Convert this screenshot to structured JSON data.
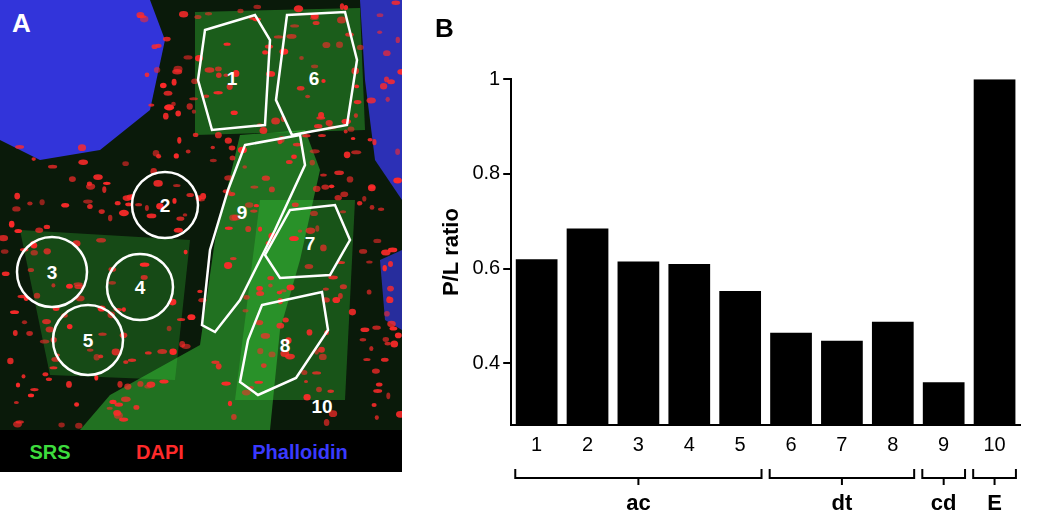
{
  "image_panel": {
    "label": "A",
    "regions": [
      "1",
      "2",
      "3",
      "4",
      "5",
      "6",
      "7",
      "8",
      "9",
      "10"
    ],
    "legend": [
      {
        "text": "SRS",
        "color": "#3ddc3d"
      },
      {
        "text": "DAPI",
        "color": "#ff2a2a"
      },
      {
        "text": "Phalloidin",
        "color": "#3a3aff"
      }
    ]
  },
  "chart_data": {
    "type": "bar",
    "title": "B",
    "y_label": "P/L ratio",
    "categories": [
      "1",
      "2",
      "3",
      "4",
      "5",
      "6",
      "7",
      "8",
      "9",
      "10"
    ],
    "values": [
      0.62,
      0.685,
      0.615,
      0.61,
      0.553,
      0.465,
      0.448,
      0.488,
      0.36,
      1.0
    ],
    "color": "#000000",
    "ylim": [
      0.27,
      1
    ],
    "yticks": [
      0.4,
      0.6,
      0.8,
      1
    ],
    "grid": false,
    "groups": [
      {
        "label": "ac",
        "categories": [
          "1",
          "2",
          "3",
          "4",
          "5"
        ]
      },
      {
        "label": "dt",
        "categories": [
          "6",
          "7",
          "8"
        ]
      },
      {
        "label": "cd",
        "categories": [
          "9"
        ]
      },
      {
        "label": "E",
        "categories": [
          "10"
        ]
      }
    ]
  }
}
